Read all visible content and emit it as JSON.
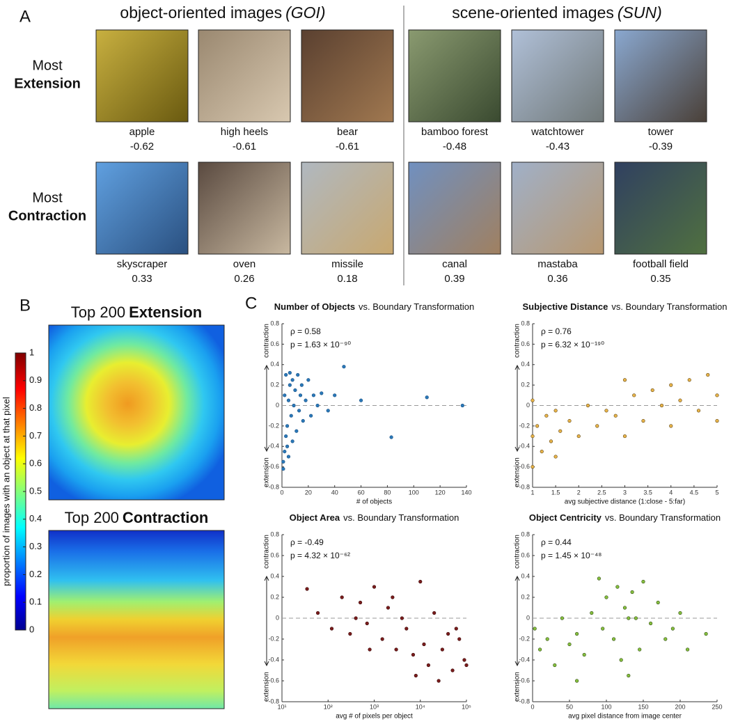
{
  "panel_a": {
    "label": "A",
    "groups": [
      {
        "title": "object-oriented images",
        "source": "(GOI)"
      },
      {
        "title": "scene-oriented images",
        "source": "(SUN)"
      }
    ],
    "rows": [
      {
        "label": "Most",
        "emphasis": "Extension",
        "items": [
          {
            "name": "apple",
            "score": -0.62
          },
          {
            "name": "high heels",
            "score": -0.61
          },
          {
            "name": "bear",
            "score": -0.61
          },
          {
            "name": "bamboo forest",
            "score": -0.48
          },
          {
            "name": "watchtower",
            "score": -0.43
          },
          {
            "name": "tower",
            "score": -0.39
          }
        ]
      },
      {
        "label": "Most",
        "emphasis": "Contraction",
        "items": [
          {
            "name": "skyscraper",
            "score": 0.33
          },
          {
            "name": "oven",
            "score": 0.26
          },
          {
            "name": "missile",
            "score": 0.18
          },
          {
            "name": "canal",
            "score": 0.39
          },
          {
            "name": "mastaba",
            "score": 0.36
          },
          {
            "name": "football field",
            "score": 0.35
          }
        ]
      }
    ]
  },
  "panel_b": {
    "label": "B",
    "maps": [
      {
        "title": "Top 200",
        "emphasis": "Extension"
      },
      {
        "title": "Top 200",
        "emphasis": "Contraction"
      }
    ],
    "colorbar": {
      "label": "proportion of images with an object at that pixel",
      "lim": [
        0,
        1
      ],
      "ticks": [
        0,
        0.1,
        0.2,
        0.3,
        0.4,
        0.5,
        0.6,
        0.7,
        0.8,
        0.9,
        1
      ]
    }
  },
  "panel_c": {
    "label": "C"
  },
  "chart_data": [
    {
      "type": "scatter",
      "title_bold": "Number of Objects",
      "title": "vs. Boundary Transformation",
      "annotations": [
        "ρ = 0.58",
        "p = 1.63 × 10⁻⁹⁰"
      ],
      "xlabel": "# of objects",
      "ylabel_top": "contraction",
      "ylabel_bottom": "extension",
      "color": "#2a78b8",
      "edge": "#1a4f80",
      "x": [
        1,
        2,
        2,
        3,
        3,
        4,
        5,
        5,
        6,
        7,
        8,
        8,
        9,
        10,
        11,
        12,
        13,
        14,
        15,
        16,
        18,
        20,
        22,
        24,
        27,
        30,
        35,
        40,
        47,
        60,
        83,
        110,
        137,
        1,
        4,
        6
      ],
      "values": [
        -0.55,
        -0.45,
        0.1,
        -0.3,
        0.3,
        -0.2,
        0.05,
        -0.5,
        0.2,
        -0.1,
        0.25,
        -0.35,
        0.0,
        0.15,
        -0.25,
        0.3,
        -0.05,
        0.1,
        0.2,
        -0.15,
        0.05,
        0.25,
        -0.1,
        0.1,
        0.0,
        0.12,
        -0.05,
        0.1,
        0.38,
        0.05,
        -0.31,
        0.08,
        0.0,
        -0.62,
        -0.4,
        0.32
      ],
      "xlim": [
        0,
        140
      ],
      "xticks": [
        0,
        20,
        40,
        60,
        80,
        100,
        120,
        140
      ],
      "ylim": [
        -0.8,
        0.8
      ],
      "yticks": [
        -0.8,
        -0.6,
        -0.4,
        -0.2,
        0,
        0.2,
        0.4,
        0.6,
        0.8
      ]
    },
    {
      "type": "scatter",
      "title_bold": "Subjective Distance",
      "title": "vs. Boundary Transformation",
      "annotations": [
        "ρ = 0.76",
        "p = 6.32 × 10⁻¹⁹⁰"
      ],
      "xlabel": "avg subjective distance (1:close - 5:far)",
      "ylabel_top": "contraction",
      "ylabel_bottom": "extension",
      "color": "#e8b44a",
      "edge": "#5a4010",
      "x": [
        1,
        1,
        1,
        1.1,
        1.2,
        1.3,
        1.4,
        1.5,
        1.6,
        1.8,
        2,
        2.2,
        2.4,
        2.6,
        2.8,
        3,
        3,
        3.2,
        3.4,
        3.6,
        3.8,
        4,
        4,
        4.2,
        4.4,
        4.6,
        4.8,
        5,
        5,
        1.5
      ],
      "values": [
        -0.6,
        -0.3,
        0.05,
        -0.2,
        -0.45,
        -0.1,
        -0.35,
        -0.05,
        -0.25,
        -0.15,
        -0.3,
        0.0,
        -0.2,
        -0.05,
        -0.1,
        0.25,
        -0.3,
        0.1,
        -0.15,
        0.15,
        0.0,
        0.2,
        -0.2,
        0.05,
        0.25,
        -0.05,
        0.3,
        0.1,
        -0.15,
        -0.5
      ],
      "xlim": [
        1,
        5
      ],
      "xticks": [
        1,
        1.5,
        2,
        2.5,
        3,
        3.5,
        4,
        4.5,
        5
      ],
      "ylim": [
        -0.8,
        0.8
      ],
      "yticks": [
        -0.8,
        -0.6,
        -0.4,
        -0.2,
        0,
        0.2,
        0.4,
        0.6,
        0.8
      ]
    },
    {
      "type": "scatter",
      "title_bold": "Object Area",
      "title": "vs. Boundary Transformation",
      "annotations": [
        "ρ = -0.49",
        "p = 4.32 × 10⁻⁶²"
      ],
      "xlabel": "avg # of pixels per object",
      "ylabel_top": "contraction",
      "ylabel_bottom": "extension",
      "color": "#7a1c1c",
      "edge": "#3a0a0a",
      "xscale": "log",
      "x": [
        35,
        60,
        120,
        200,
        300,
        500,
        700,
        1000,
        1500,
        2000,
        3000,
        4000,
        5000,
        7000,
        10000,
        12000,
        15000,
        20000,
        30000,
        40000,
        50000,
        70000,
        90000,
        800,
        2500,
        8000,
        25000,
        60000,
        100000,
        400
      ],
      "values": [
        0.28,
        0.05,
        -0.1,
        0.2,
        -0.15,
        0.15,
        -0.05,
        0.3,
        -0.2,
        0.1,
        -0.3,
        0.0,
        -0.1,
        -0.35,
        0.35,
        -0.25,
        -0.45,
        0.05,
        -0.3,
        -0.15,
        -0.5,
        -0.2,
        -0.4,
        -0.3,
        0.2,
        -0.55,
        -0.6,
        -0.1,
        -0.45,
        0.0
      ],
      "xlim": [
        10,
        100000
      ],
      "xticks": [
        {
          "value": 10,
          "label": "10¹"
        },
        {
          "value": 100,
          "label": "10²"
        },
        {
          "value": 1000,
          "label": "10³"
        },
        {
          "value": 10000,
          "label": "10⁴"
        },
        {
          "value": 100000,
          "label": "10⁵"
        }
      ],
      "ylim": [
        -0.8,
        0.8
      ],
      "yticks": [
        -0.8,
        -0.6,
        -0.4,
        -0.2,
        0,
        0.2,
        0.4,
        0.6,
        0.8
      ]
    },
    {
      "type": "scatter",
      "title_bold": "Object Centricity",
      "title": "vs. Boundary Transformation",
      "annotations": [
        "ρ = 0.44",
        "p = 1.45 × 10⁻⁴⁸"
      ],
      "xlabel": "avg pixel distance from image center",
      "ylabel_top": "contraction",
      "ylabel_bottom": "extension",
      "color": "#86bf3e",
      "edge": "#2e4a12",
      "x": [
        3,
        10,
        20,
        30,
        40,
        50,
        60,
        70,
        80,
        90,
        95,
        100,
        110,
        115,
        120,
        125,
        130,
        135,
        140,
        145,
        150,
        160,
        170,
        180,
        190,
        200,
        210,
        235,
        60,
        130
      ],
      "values": [
        -0.1,
        -0.3,
        -0.2,
        -0.45,
        0.0,
        -0.25,
        -0.15,
        -0.35,
        0.05,
        0.38,
        -0.1,
        0.2,
        -0.2,
        0.3,
        -0.4,
        0.1,
        -0.55,
        0.25,
        0.0,
        -0.3,
        0.35,
        -0.05,
        0.15,
        -0.2,
        -0.1,
        0.05,
        -0.3,
        -0.15,
        -0.6,
        0.0
      ],
      "xlim": [
        0,
        250
      ],
      "xticks": [
        0,
        50,
        100,
        150,
        200,
        250
      ],
      "ylim": [
        -0.8,
        0.8
      ],
      "yticks": [
        -0.8,
        -0.6,
        -0.4,
        -0.2,
        0,
        0.2,
        0.4,
        0.6,
        0.8
      ]
    }
  ]
}
